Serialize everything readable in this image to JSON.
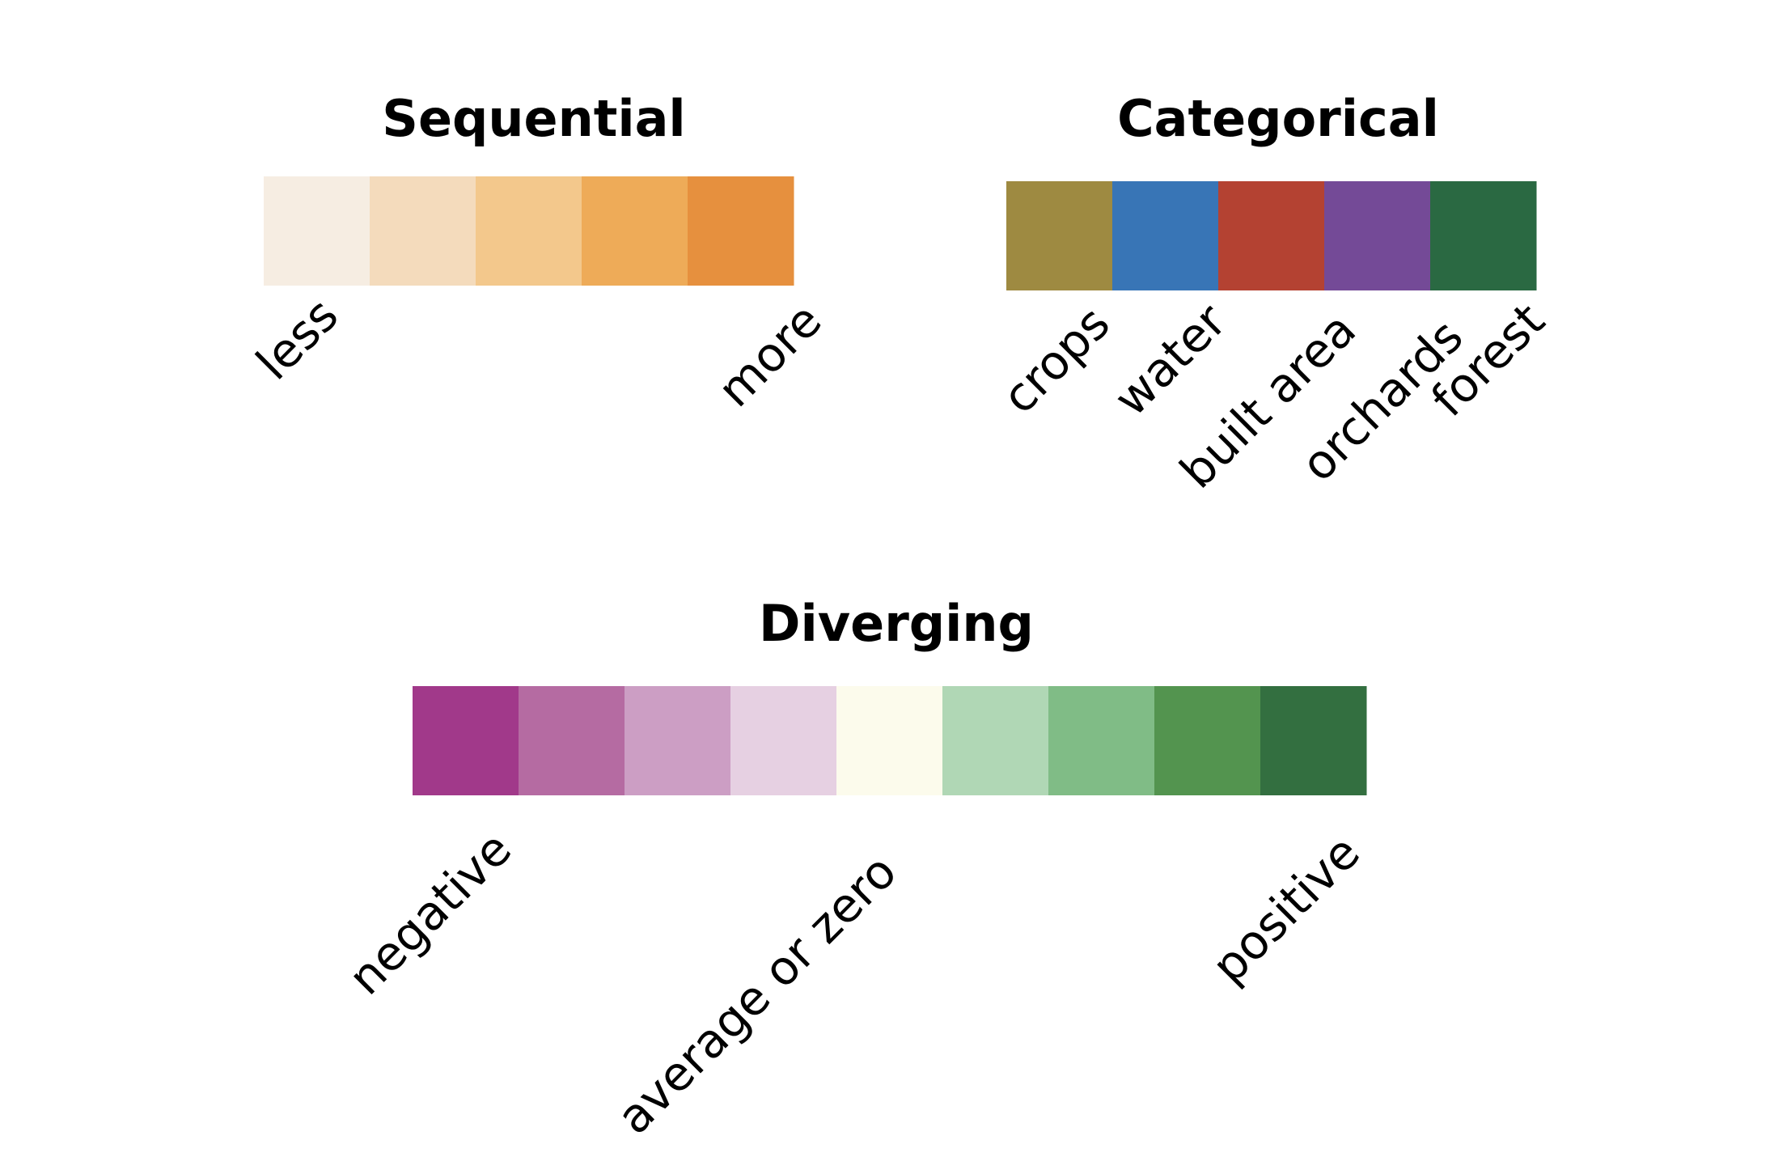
{
  "scales": [
    {
      "id": "sequential",
      "title": "Sequential",
      "colors": [
        "#f6ede2",
        "#f4dbbc",
        "#f3c88c",
        "#eeab58",
        "#e6903e"
      ],
      "labels": [
        {
          "text": "less",
          "at_swatch": 0
        },
        {
          "text": "more",
          "at_swatch": 4
        }
      ]
    },
    {
      "id": "categorical",
      "title": "Categorical",
      "colors": [
        "#9e8a41",
        "#3875b6",
        "#b44232",
        "#744a97",
        "#2a6942"
      ],
      "labels": [
        {
          "text": "crops",
          "at_swatch": 0
        },
        {
          "text": "water",
          "at_swatch": 1
        },
        {
          "text": "built area",
          "at_swatch": 2
        },
        {
          "text": "orchards",
          "at_swatch": 3
        },
        {
          "text": "forest",
          "at_swatch": 4
        }
      ]
    },
    {
      "id": "diverging",
      "title": "Diverging",
      "colors": [
        "#a1398a",
        "#b56ba2",
        "#cc9ec4",
        "#e6d0e2",
        "#fcfbec",
        "#b0d7b5",
        "#80bc86",
        "#53944f",
        "#336f40"
      ],
      "labels": [
        {
          "text": "negative",
          "at_swatch": 0
        },
        {
          "text": "average or zero",
          "at_swatch": 4
        },
        {
          "text": "positive",
          "at_swatch": 8
        }
      ]
    }
  ]
}
